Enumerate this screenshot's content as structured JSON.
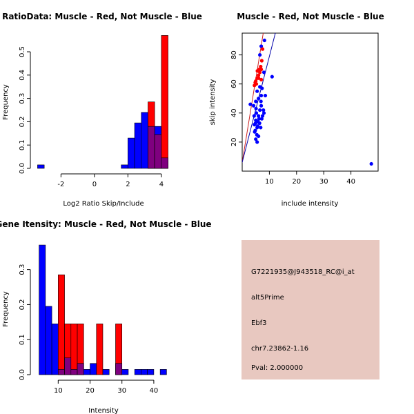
{
  "colors": {
    "red": "#ff0000",
    "blue": "#0000ff",
    "overlap": "#7f007f",
    "axis": "#000000",
    "info_bg": "#e8c8c0",
    "pval": "#aa0000",
    "red_line": "#cc2222",
    "blue_line": "#0000aa"
  },
  "info_panel": {
    "lines": [
      "G7221935@J943518_RC@i_at",
      "alt5Prime",
      "Ebf3",
      "chr7.23862-1.16"
    ],
    "pval": "Pval: 2.000000"
  },
  "chart_data": [
    {
      "id": "ratio-histogram",
      "type": "bar",
      "title": "RatioData: Muscle - Red, Not Muscle - Blue",
      "xlabel": "Log2 Ratio Skip/Include",
      "ylabel": "Frequency",
      "xlim": [
        -3.5,
        4.5
      ],
      "ylim": [
        0,
        0.58
      ],
      "xticks": [
        -2,
        0,
        2,
        4
      ],
      "yticks": [
        0.0,
        0.1,
        0.2,
        0.3,
        0.4,
        0.5
      ],
      "bins": [
        {
          "x0": -3.4,
          "x1": -3.0,
          "red": 0,
          "blue": 0.015
        },
        {
          "x0": 1.6,
          "x1": 2.0,
          "red": 0,
          "blue": 0.015
        },
        {
          "x0": 2.0,
          "x1": 2.4,
          "red": 0,
          "blue": 0.13
        },
        {
          "x0": 2.4,
          "x1": 2.8,
          "red": 0,
          "blue": 0.195
        },
        {
          "x0": 2.8,
          "x1": 3.2,
          "red": 0,
          "blue": 0.24
        },
        {
          "x0": 3.2,
          "x1": 3.6,
          "red": 0.285,
          "blue": 0.18
        },
        {
          "x0": 3.6,
          "x1": 4.0,
          "red": 0.145,
          "blue": 0.18
        },
        {
          "x0": 4.0,
          "x1": 4.4,
          "red": 0.57,
          "blue": 0.045
        }
      ]
    },
    {
      "id": "intensity-scatter",
      "type": "scatter",
      "title": "Muscle - Red, Not Muscle - Blue",
      "xlabel": "include intensity",
      "ylabel": "skip intensity",
      "xlim": [
        0,
        50
      ],
      "ylim": [
        0,
        95
      ],
      "xticks": [
        10,
        20,
        30,
        40
      ],
      "yticks": [
        20,
        40,
        60,
        80
      ],
      "red_points": [
        [
          5,
          62
        ],
        [
          5.5,
          64
        ],
        [
          6,
          66
        ],
        [
          6.5,
          68
        ],
        [
          7,
          70
        ],
        [
          5.2,
          60
        ],
        [
          4.8,
          61
        ],
        [
          6,
          64
        ],
        [
          7,
          63
        ],
        [
          5.6,
          69
        ],
        [
          6.8,
          72
        ],
        [
          7.2,
          76
        ],
        [
          7.5,
          84
        ],
        [
          4.5,
          59
        ],
        [
          6.2,
          70
        ]
      ],
      "blue_points": [
        [
          4.5,
          32
        ],
        [
          5,
          35
        ],
        [
          5.5,
          30
        ],
        [
          6,
          38
        ],
        [
          4.8,
          28
        ],
        [
          5.2,
          40
        ],
        [
          6.5,
          42
        ],
        [
          7,
          45
        ],
        [
          5.8,
          34
        ],
        [
          6.2,
          36
        ],
        [
          4.6,
          27
        ],
        [
          5.4,
          25
        ],
        [
          6.8,
          30
        ],
        [
          7.5,
          38
        ],
        [
          8,
          40
        ],
        [
          5,
          48
        ],
        [
          6,
          50
        ],
        [
          7,
          52
        ],
        [
          5.5,
          55
        ],
        [
          6.5,
          58
        ],
        [
          4.2,
          45
        ],
        [
          3,
          46
        ],
        [
          8.5,
          52
        ],
        [
          8,
          68
        ],
        [
          8.2,
          90
        ],
        [
          11,
          65
        ],
        [
          6.5,
          80
        ],
        [
          7,
          86
        ],
        [
          5,
          22
        ],
        [
          5.5,
          20
        ],
        [
          6,
          24
        ],
        [
          4.9,
          33
        ],
        [
          5.7,
          31
        ],
        [
          6.4,
          33
        ],
        [
          7.2,
          36
        ],
        [
          7.8,
          42
        ],
        [
          4.4,
          38
        ],
        [
          5.1,
          43
        ],
        [
          6.9,
          48
        ],
        [
          7.3,
          57
        ],
        [
          47.5,
          5
        ]
      ],
      "red_line": {
        "slope": 11.5,
        "intercept": 6
      },
      "blue_line": {
        "slope": 7.3,
        "intercept": 6
      }
    },
    {
      "id": "intensity-histogram",
      "type": "bar",
      "title": "Gene Itensity: Muscle - Red, Not Muscle - Blue",
      "xlabel": "Intensity",
      "ylabel": "Frequency",
      "xlim": [
        3,
        45
      ],
      "ylim": [
        0,
        0.38
      ],
      "xticks": [
        10,
        20,
        30,
        40
      ],
      "yticks": [
        0.0,
        0.1,
        0.2,
        0.3
      ],
      "bins": [
        {
          "x0": 4,
          "x1": 6,
          "red": 0,
          "blue": 0.37
        },
        {
          "x0": 6,
          "x1": 8,
          "red": 0,
          "blue": 0.195
        },
        {
          "x0": 8,
          "x1": 10,
          "red": 0,
          "blue": 0.145
        },
        {
          "x0": 10,
          "x1": 12,
          "red": 0.285,
          "blue": 0.015
        },
        {
          "x0": 12,
          "x1": 14,
          "red": 0.145,
          "blue": 0.048
        },
        {
          "x0": 14,
          "x1": 16,
          "red": 0.145,
          "blue": 0.015
        },
        {
          "x0": 16,
          "x1": 18,
          "red": 0.145,
          "blue": 0.032
        },
        {
          "x0": 18,
          "x1": 20,
          "red": 0,
          "blue": 0.015
        },
        {
          "x0": 20,
          "x1": 22,
          "red": 0,
          "blue": 0.032
        },
        {
          "x0": 22,
          "x1": 24,
          "red": 0.145,
          "blue": 0
        },
        {
          "x0": 24,
          "x1": 26,
          "red": 0,
          "blue": 0.015
        },
        {
          "x0": 28,
          "x1": 30,
          "red": 0.145,
          "blue": 0.032
        },
        {
          "x0": 30,
          "x1": 32,
          "red": 0,
          "blue": 0.015
        },
        {
          "x0": 34,
          "x1": 36,
          "red": 0,
          "blue": 0.015
        },
        {
          "x0": 36,
          "x1": 38,
          "red": 0,
          "blue": 0.015
        },
        {
          "x0": 38,
          "x1": 40,
          "red": 0,
          "blue": 0.015
        },
        {
          "x0": 42,
          "x1": 44,
          "red": 0,
          "blue": 0.015
        }
      ]
    }
  ]
}
